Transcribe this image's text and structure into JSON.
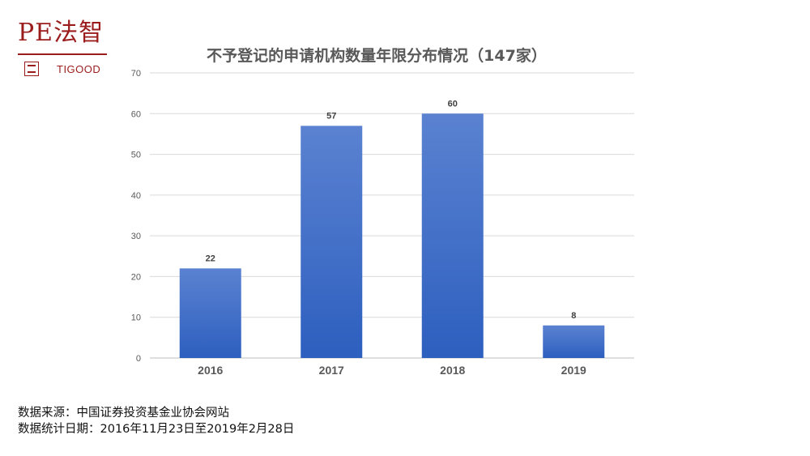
{
  "logo": {
    "wordmark": "PE法智",
    "subtitle": "TIGOOD",
    "color": "#9b1c1c"
  },
  "chart_data": {
    "type": "bar",
    "title": "不予登记的申请机构数量年限分布情况（147家）",
    "categories": [
      "2016",
      "2017",
      "2018",
      "2019"
    ],
    "values": [
      22,
      57,
      60,
      8
    ],
    "data_labels": [
      "22",
      "57",
      "60",
      "8"
    ],
    "xlabel": "",
    "ylabel": "",
    "ylim": [
      0,
      70
    ],
    "yticks": [
      0,
      10,
      20,
      30,
      40,
      50,
      60,
      70
    ],
    "grid": true,
    "legend": "none",
    "bar_color_top": "#5b82d1",
    "bar_color_bottom": "#2d5fbf"
  },
  "footer": {
    "source_line": "数据来源：中国证券投资基金业协会网站",
    "date_line": "数据统计日期：2016年11月23日至2019年2月28日"
  }
}
